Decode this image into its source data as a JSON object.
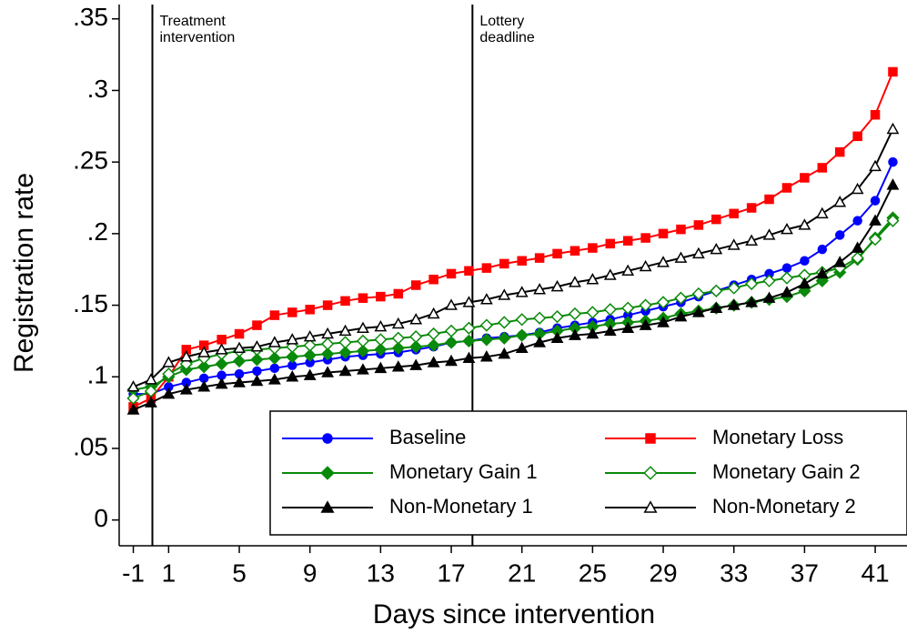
{
  "chart_data": {
    "type": "line",
    "xlabel": "Days since intervention",
    "ylabel": "Registration rate",
    "x": [
      -1,
      0,
      1,
      2,
      3,
      4,
      5,
      6,
      7,
      8,
      9,
      10,
      11,
      12,
      13,
      14,
      15,
      16,
      17,
      18,
      19,
      20,
      21,
      22,
      23,
      24,
      25,
      26,
      27,
      28,
      29,
      30,
      31,
      32,
      33,
      34,
      35,
      36,
      37,
      38,
      39,
      40,
      41,
      42
    ],
    "xlim": [
      -1.8,
      42.8
    ],
    "ylim": [
      -0.018,
      0.36
    ],
    "xticks": [
      -1,
      1,
      5,
      9,
      13,
      17,
      21,
      25,
      29,
      33,
      37,
      41
    ],
    "yticks": [
      0,
      {
        "value": 0.05,
        "label": ".05"
      },
      {
        "value": 0.1,
        "label": ".1"
      },
      {
        "value": 0.15,
        "label": ".15"
      },
      {
        "value": 0.2,
        "label": ".2"
      },
      {
        "value": 0.25,
        "label": ".25"
      },
      {
        "value": 0.3,
        "label": ".3"
      },
      {
        "value": 0.35,
        "label": ".35"
      }
    ],
    "vlines": [
      {
        "value": 0.08,
        "label": [
          "Treatment",
          "intervention"
        ]
      },
      {
        "value": 18.2,
        "label": [
          "Lottery",
          "deadline"
        ]
      }
    ],
    "legend": "lower right",
    "series": [
      {
        "name": "Baseline",
        "color": "#0000ff",
        "marker": "circle",
        "filled": true,
        "values": [
          0.088,
          0.088,
          0.093,
          0.096,
          0.099,
          0.101,
          0.102,
          0.104,
          0.106,
          0.108,
          0.11,
          0.112,
          0.114,
          0.115,
          0.116,
          0.117,
          0.119,
          0.121,
          0.124,
          0.125,
          0.127,
          0.128,
          0.129,
          0.131,
          0.134,
          0.136,
          0.138,
          0.14,
          0.143,
          0.146,
          0.149,
          0.152,
          0.156,
          0.16,
          0.164,
          0.168,
          0.172,
          0.176,
          0.181,
          0.189,
          0.199,
          0.209,
          0.223,
          0.25
        ]
      },
      {
        "name": "Monetary Loss",
        "color": "#ff0000",
        "marker": "square",
        "filled": true,
        "values": [
          0.079,
          0.085,
          0.1,
          0.119,
          0.122,
          0.126,
          0.13,
          0.136,
          0.143,
          0.145,
          0.147,
          0.15,
          0.153,
          0.155,
          0.156,
          0.158,
          0.164,
          0.168,
          0.172,
          0.174,
          0.176,
          0.179,
          0.181,
          0.183,
          0.186,
          0.188,
          0.19,
          0.193,
          0.195,
          0.197,
          0.2,
          0.203,
          0.206,
          0.21,
          0.214,
          0.218,
          0.224,
          0.232,
          0.239,
          0.246,
          0.257,
          0.268,
          0.283,
          0.313
        ]
      },
      {
        "name": "Monetary Gain 1",
        "color": "#0a8a0a",
        "marker": "diamond",
        "filled": true,
        "values": [
          0.091,
          0.093,
          0.1,
          0.105,
          0.107,
          0.109,
          0.111,
          0.112,
          0.113,
          0.114,
          0.115,
          0.116,
          0.117,
          0.118,
          0.119,
          0.12,
          0.121,
          0.122,
          0.124,
          0.125,
          0.126,
          0.127,
          0.129,
          0.13,
          0.132,
          0.134,
          0.135,
          0.137,
          0.138,
          0.139,
          0.141,
          0.144,
          0.146,
          0.148,
          0.15,
          0.152,
          0.154,
          0.156,
          0.16,
          0.167,
          0.173,
          0.182,
          0.197,
          0.211
        ]
      },
      {
        "name": "Monetary Gain 2",
        "color": "#0a8a0a",
        "marker": "diamond",
        "filled": false,
        "values": [
          0.085,
          0.09,
          0.102,
          0.109,
          0.113,
          0.116,
          0.118,
          0.119,
          0.12,
          0.121,
          0.122,
          0.123,
          0.124,
          0.125,
          0.126,
          0.127,
          0.128,
          0.13,
          0.132,
          0.134,
          0.136,
          0.138,
          0.14,
          0.141,
          0.142,
          0.144,
          0.145,
          0.147,
          0.148,
          0.15,
          0.152,
          0.155,
          0.158,
          0.16,
          0.162,
          0.165,
          0.167,
          0.169,
          0.171,
          0.173,
          0.176,
          0.183,
          0.196,
          0.209
        ]
      },
      {
        "name": "Non-Monetary 1",
        "color": "#000000",
        "marker": "triangle",
        "filled": true,
        "values": [
          0.077,
          0.082,
          0.088,
          0.091,
          0.093,
          0.095,
          0.096,
          0.097,
          0.098,
          0.1,
          0.101,
          0.103,
          0.104,
          0.105,
          0.106,
          0.107,
          0.108,
          0.11,
          0.111,
          0.113,
          0.114,
          0.116,
          0.12,
          0.124,
          0.127,
          0.129,
          0.13,
          0.132,
          0.134,
          0.136,
          0.138,
          0.142,
          0.145,
          0.148,
          0.15,
          0.152,
          0.155,
          0.159,
          0.165,
          0.172,
          0.18,
          0.19,
          0.209,
          0.234
        ]
      },
      {
        "name": "Non-Monetary 2",
        "color": "#000000",
        "marker": "triangle",
        "filled": false,
        "values": [
          0.093,
          0.098,
          0.11,
          0.114,
          0.117,
          0.119,
          0.12,
          0.121,
          0.124,
          0.126,
          0.128,
          0.13,
          0.132,
          0.134,
          0.135,
          0.137,
          0.14,
          0.144,
          0.15,
          0.152,
          0.154,
          0.157,
          0.159,
          0.161,
          0.163,
          0.166,
          0.168,
          0.171,
          0.174,
          0.177,
          0.18,
          0.183,
          0.186,
          0.189,
          0.192,
          0.195,
          0.199,
          0.203,
          0.206,
          0.214,
          0.222,
          0.231,
          0.247,
          0.273
        ]
      }
    ]
  }
}
